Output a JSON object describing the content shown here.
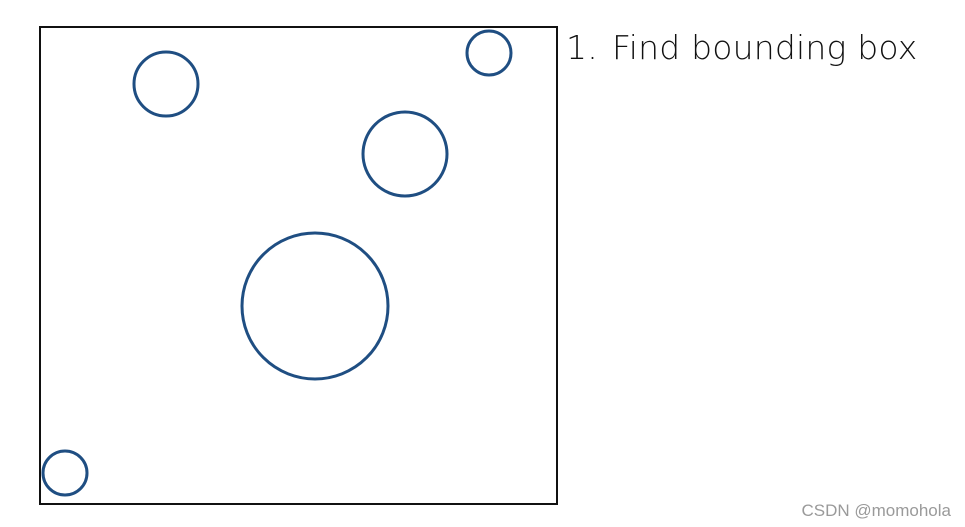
{
  "colors": {
    "frame": "#111111",
    "circle_stroke": "#1f4e82",
    "text": "#111111",
    "watermark": "#9a9a9a"
  },
  "steps": [
    {
      "number": "1.",
      "label": "Find bounding box"
    }
  ],
  "watermark": "CSDN @momohola"
}
